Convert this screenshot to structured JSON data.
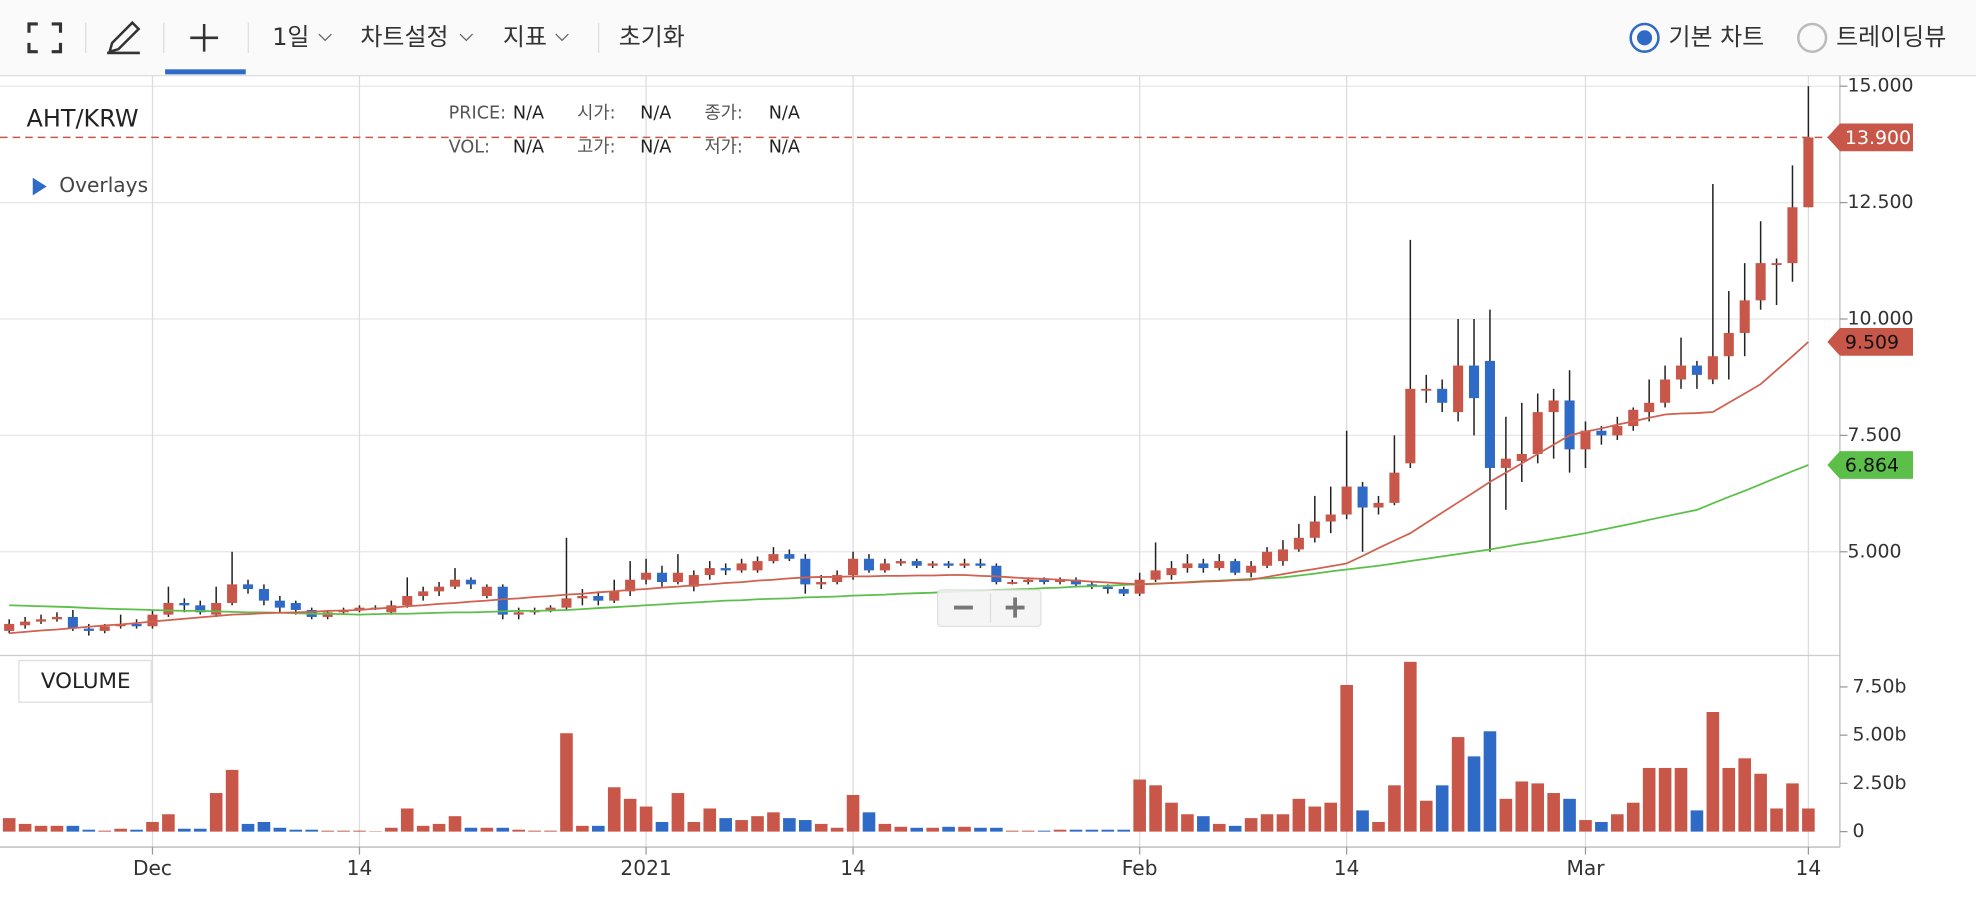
{
  "header": {
    "interval": "1일",
    "settings": "차트설정",
    "indicators": "지표",
    "reset": "초기화",
    "mode_basic": "기본 차트",
    "mode_tv": "트레이딩뷰"
  },
  "info": {
    "rows": [
      [
        "PRICE:",
        "N/A",
        "시가:",
        "N/A",
        "종가:",
        "N/A"
      ],
      [
        "VOL:",
        "N/A",
        "고가:",
        "N/A",
        "저가:",
        "N/A"
      ]
    ]
  },
  "chart_data": {
    "type": "candlestick",
    "symbol": "AHT/KRW",
    "overlays_label": "Overlays",
    "volume_label": "VOLUME",
    "up_color": "#c8574a",
    "down_color": "#2f6bc6",
    "grid": true,
    "open": [
      3.3,
      3.42,
      3.5,
      3.55,
      3.6,
      3.35,
      3.3,
      3.4,
      3.45,
      3.4,
      3.65,
      3.9,
      3.85,
      3.65,
      3.9,
      4.3,
      4.2,
      3.95,
      3.9,
      3.75,
      3.6,
      3.7,
      3.75,
      3.8,
      3.7,
      3.85,
      4.05,
      4.15,
      4.25,
      4.4,
      4.05,
      4.25,
      3.65,
      3.7,
      3.75,
      3.8,
      4.0,
      4.05,
      3.95,
      4.15,
      4.4,
      4.55,
      4.35,
      4.25,
      4.5,
      4.65,
      4.6,
      4.6,
      4.8,
      4.95,
      4.85,
      4.3,
      4.35,
      4.5,
      4.85,
      4.6,
      4.75,
      4.8,
      4.7,
      4.75,
      4.7,
      4.75,
      4.7,
      4.35,
      4.35,
      4.4,
      4.35,
      4.4,
      4.3,
      4.25,
      4.2,
      4.1,
      4.4,
      4.5,
      4.65,
      4.75,
      4.65,
      4.8,
      4.55,
      4.7,
      4.8,
      5.05,
      5.3,
      5.65,
      5.8,
      6.4,
      5.95,
      6.05,
      6.9,
      8.5,
      8.5,
      8.0,
      9.0,
      9.1,
      6.8,
      6.95,
      7.1,
      8.0,
      8.25,
      7.2,
      7.6,
      7.5,
      7.7,
      8.0,
      8.2,
      8.7,
      9.0,
      8.7,
      9.2,
      9.7,
      10.4,
      11.2,
      11.2,
      12.4
    ],
    "high": [
      3.55,
      3.6,
      3.65,
      3.7,
      3.75,
      3.45,
      3.45,
      3.65,
      3.55,
      3.75,
      4.25,
      4.0,
      3.95,
      4.25,
      5.0,
      4.4,
      4.3,
      4.05,
      3.95,
      3.8,
      3.75,
      3.8,
      3.85,
      3.85,
      3.95,
      4.45,
      4.25,
      4.35,
      4.65,
      4.45,
      4.3,
      4.3,
      3.8,
      3.8,
      3.85,
      5.3,
      4.2,
      4.15,
      4.4,
      4.8,
      4.85,
      4.7,
      4.95,
      4.6,
      4.8,
      4.75,
      4.85,
      4.9,
      5.1,
      5.05,
      4.95,
      4.5,
      4.6,
      5.0,
      4.95,
      4.85,
      4.85,
      4.85,
      4.8,
      4.8,
      4.85,
      4.85,
      4.75,
      4.4,
      4.45,
      4.45,
      4.45,
      4.45,
      4.35,
      4.3,
      4.25,
      4.55,
      5.2,
      4.8,
      4.95,
      4.85,
      4.95,
      4.85,
      4.8,
      5.1,
      5.25,
      5.6,
      6.2,
      6.4,
      7.6,
      6.5,
      6.2,
      7.5,
      11.7,
      8.8,
      8.7,
      10.0,
      10.0,
      10.2,
      7.9,
      8.2,
      8.4,
      8.5,
      8.9,
      7.8,
      7.7,
      7.9,
      8.1,
      8.7,
      9.0,
      9.6,
      9.1,
      12.9,
      10.6,
      11.2,
      12.1,
      11.3,
      13.3,
      15.0
    ],
    "low": [
      3.25,
      3.35,
      3.45,
      3.5,
      3.3,
      3.2,
      3.25,
      3.35,
      3.35,
      3.35,
      3.6,
      3.7,
      3.65,
      3.6,
      3.85,
      4.1,
      3.85,
      3.7,
      3.65,
      3.55,
      3.55,
      3.65,
      3.7,
      3.75,
      3.65,
      3.8,
      3.95,
      4.05,
      4.2,
      4.2,
      4.0,
      3.55,
      3.55,
      3.65,
      3.7,
      3.75,
      3.85,
      3.85,
      3.9,
      4.05,
      4.3,
      4.25,
      4.3,
      4.15,
      4.4,
      4.5,
      4.55,
      4.55,
      4.75,
      4.8,
      4.1,
      4.2,
      4.3,
      4.4,
      4.55,
      4.55,
      4.7,
      4.65,
      4.65,
      4.65,
      4.65,
      4.65,
      4.3,
      4.3,
      4.3,
      4.3,
      4.3,
      4.25,
      4.2,
      4.1,
      4.05,
      4.05,
      4.35,
      4.4,
      4.55,
      4.55,
      4.6,
      4.5,
      4.45,
      4.65,
      4.7,
      5.0,
      5.2,
      5.4,
      5.7,
      5.0,
      5.8,
      6.0,
      6.8,
      8.2,
      8.0,
      7.8,
      7.5,
      5.0,
      5.9,
      6.5,
      6.9,
      7.0,
      6.7,
      6.8,
      7.3,
      7.4,
      7.6,
      7.8,
      8.1,
      8.5,
      8.5,
      8.6,
      8.7,
      9.2,
      10.2,
      10.3,
      10.8,
      12.4
    ],
    "close": [
      3.45,
      3.5,
      3.55,
      3.6,
      3.35,
      3.3,
      3.4,
      3.45,
      3.4,
      3.65,
      3.9,
      3.85,
      3.7,
      3.9,
      4.3,
      4.2,
      3.95,
      3.8,
      3.75,
      3.6,
      3.7,
      3.75,
      3.8,
      3.8,
      3.85,
      4.05,
      4.15,
      4.25,
      4.4,
      4.3,
      4.25,
      3.65,
      3.7,
      3.75,
      3.8,
      4.0,
      4.05,
      3.95,
      4.15,
      4.4,
      4.55,
      4.35,
      4.55,
      4.5,
      4.65,
      4.6,
      4.75,
      4.8,
      4.95,
      4.85,
      4.3,
      4.35,
      4.5,
      4.85,
      4.6,
      4.75,
      4.8,
      4.7,
      4.75,
      4.7,
      4.75,
      4.7,
      4.35,
      4.35,
      4.4,
      4.35,
      4.4,
      4.3,
      4.25,
      4.2,
      4.1,
      4.4,
      4.6,
      4.65,
      4.75,
      4.65,
      4.8,
      4.55,
      4.7,
      5.0,
      5.05,
      5.3,
      5.65,
      5.8,
      6.4,
      5.95,
      6.05,
      6.7,
      8.5,
      8.5,
      8.2,
      9.0,
      8.3,
      6.8,
      7.0,
      7.1,
      8.0,
      8.25,
      7.2,
      7.6,
      7.5,
      7.7,
      8.05,
      8.2,
      8.7,
      9.0,
      8.8,
      9.2,
      9.7,
      10.4,
      11.2,
      11.2,
      12.4,
      13.9
    ],
    "volume": [
      0.7,
      0.4,
      0.3,
      0.3,
      0.3,
      0.1,
      0.05,
      0.15,
      0.1,
      0.5,
      0.9,
      0.15,
      0.15,
      2.0,
      3.2,
      0.4,
      0.5,
      0.2,
      0.1,
      0.1,
      0.05,
      0.05,
      0.05,
      0.02,
      0.2,
      1.2,
      0.3,
      0.4,
      0.8,
      0.2,
      0.2,
      0.2,
      0.1,
      0.05,
      0.05,
      5.1,
      0.3,
      0.3,
      2.3,
      1.7,
      1.3,
      0.5,
      2.0,
      0.5,
      1.2,
      0.7,
      0.6,
      0.8,
      1.0,
      0.7,
      0.6,
      0.4,
      0.2,
      1.9,
      1.0,
      0.4,
      0.25,
      0.2,
      0.2,
      0.25,
      0.25,
      0.2,
      0.2,
      0.05,
      0.05,
      0.05,
      0.1,
      0.1,
      0.1,
      0.1,
      0.1,
      2.7,
      2.4,
      1.5,
      0.9,
      0.8,
      0.4,
      0.3,
      0.7,
      0.9,
      0.9,
      1.7,
      1.3,
      1.5,
      7.6,
      1.1,
      0.5,
      2.4,
      8.8,
      1.6,
      2.4,
      4.9,
      3.9,
      5.2,
      1.7,
      2.6,
      2.5,
      2.0,
      1.7,
      0.6,
      0.5,
      0.9,
      1.5,
      3.3,
      3.3,
      3.3,
      1.1,
      6.2,
      3.3,
      3.8,
      3.0,
      1.2,
      2.5,
      1.2
    ],
    "ma_fast": {
      "color": "#d0604f",
      "values": [
        3.25,
        3.28,
        3.31,
        3.33,
        3.36,
        3.39,
        3.42,
        3.44,
        3.47,
        3.5,
        3.53,
        3.56,
        3.59,
        3.62,
        3.65,
        3.66,
        3.68,
        3.69,
        3.7,
        3.71,
        3.73,
        3.74,
        3.75,
        3.78,
        3.8,
        3.83,
        3.85,
        3.88,
        3.9,
        3.93,
        3.95,
        3.98,
        4.0,
        4.03,
        4.05,
        4.08,
        4.1,
        4.13,
        4.15,
        4.18,
        4.2,
        4.23,
        4.25,
        4.28,
        4.3,
        4.33,
        4.35,
        4.38,
        4.4,
        4.43,
        4.45,
        4.46,
        4.46,
        4.47,
        4.47,
        4.48,
        4.48,
        4.49,
        4.49,
        4.5,
        4.5,
        4.48,
        4.47,
        4.45,
        4.43,
        4.42,
        4.4,
        4.38,
        4.36,
        4.34,
        4.32,
        4.3,
        4.31,
        4.33,
        4.34,
        4.36,
        4.37,
        4.39,
        4.4,
        4.46,
        4.52,
        4.58,
        4.63,
        4.69,
        4.75,
        4.91,
        5.08,
        5.24,
        5.4,
        5.62,
        5.84,
        6.06,
        6.28,
        6.5,
        6.7,
        6.9,
        7.1,
        7.3,
        7.5,
        7.58,
        7.65,
        7.73,
        7.8,
        7.88,
        7.95,
        7.97,
        7.98,
        8.0,
        8.2,
        8.4,
        8.6,
        8.9,
        9.2,
        9.509
      ]
    },
    "ma_slow": {
      "color": "#5cbf4a",
      "values": [
        3.85,
        3.84,
        3.83,
        3.82,
        3.81,
        3.79,
        3.78,
        3.77,
        3.76,
        3.75,
        3.74,
        3.73,
        3.73,
        3.72,
        3.71,
        3.7,
        3.7,
        3.69,
        3.68,
        3.67,
        3.67,
        3.66,
        3.65,
        3.66,
        3.67,
        3.67,
        3.68,
        3.69,
        3.7,
        3.7,
        3.71,
        3.72,
        3.73,
        3.73,
        3.74,
        3.75,
        3.77,
        3.79,
        3.81,
        3.83,
        3.85,
        3.87,
        3.89,
        3.91,
        3.93,
        3.95,
        3.96,
        3.98,
        3.99,
        4.0,
        4.02,
        4.03,
        4.04,
        4.06,
        4.07,
        4.08,
        4.1,
        4.11,
        4.12,
        4.14,
        4.15,
        4.16,
        4.18,
        4.19,
        4.2,
        4.22,
        4.23,
        4.25,
        4.26,
        4.27,
        4.29,
        4.3,
        4.32,
        4.33,
        4.35,
        4.37,
        4.38,
        4.4,
        4.42,
        4.43,
        4.45,
        4.49,
        4.53,
        4.58,
        4.62,
        4.66,
        4.7,
        4.75,
        4.8,
        4.85,
        4.9,
        4.95,
        5.0,
        5.05,
        5.11,
        5.17,
        5.22,
        5.28,
        5.34,
        5.4,
        5.47,
        5.54,
        5.61,
        5.69,
        5.76,
        5.83,
        5.9,
        6.04,
        6.18,
        6.31,
        6.45,
        6.59,
        6.73,
        6.864
      ]
    },
    "price_tags": [
      {
        "value": 13.9,
        "label": "13.900",
        "color": "#c8574a",
        "text_color": "#ffffff",
        "dashed": true
      },
      {
        "value": 9.509,
        "label": "9.509",
        "color": "#c8574a",
        "text_color": "#111111"
      },
      {
        "value": 6.864,
        "label": "6.864",
        "color": "#5cbf4a",
        "text_color": "#111111"
      }
    ],
    "ylim": [
      2.8,
      15.2
    ],
    "yticks": [
      {
        "value": 5,
        "label": "5.000"
      },
      {
        "value": 7.5,
        "label": "7.500"
      },
      {
        "value": 10,
        "label": "10.000"
      },
      {
        "value": 12.5,
        "label": "12.500"
      },
      {
        "value": 15,
        "label": "15.000"
      }
    ],
    "volume_ylim": [
      -0.8,
      9.0
    ],
    "volume_ticks": [
      0,
      {
        "value": 2.5,
        "label": "2.50b"
      },
      {
        "value": 5,
        "label": "5.00b"
      },
      {
        "value": 7.5,
        "label": "7.50b"
      }
    ],
    "xticks": [
      {
        "value": 9,
        "label": "Dec"
      },
      {
        "value": 22,
        "label": "14"
      },
      {
        "value": 40,
        "label": "2021"
      },
      {
        "value": 53,
        "label": "14"
      },
      {
        "value": 71,
        "label": "Feb"
      },
      {
        "value": 84,
        "label": "14"
      },
      {
        "value": 99,
        "label": "Mar"
      },
      {
        "value": 113,
        "label": "14"
      }
    ]
  }
}
